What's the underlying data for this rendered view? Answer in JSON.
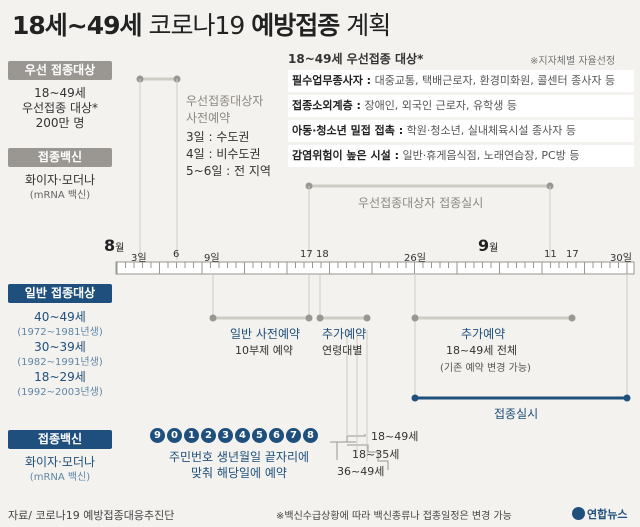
{
  "title_bold": "18세~49세",
  "title_light_1": "코로나19",
  "title_bold_2": "예방접종",
  "title_light_2": "계획",
  "left": {
    "priority_header": "우선 접종대상",
    "priority_line1": "18~49세",
    "priority_line2": "우선접종 대상*",
    "priority_line3": "200만 명",
    "vaccine_header_1": "접종백신",
    "vaccine_1_name": "화이자·모더나",
    "vaccine_1_sub": "(mRNA 백신)",
    "general_header": "일반 접종대상",
    "groups": [
      {
        "age": "40~49세",
        "years": "(1972~1981년생)"
      },
      {
        "age": "30~39세",
        "years": "(1982~1991년생)"
      },
      {
        "age": "18~29세",
        "years": "(1992~2003년생)"
      }
    ],
    "vaccine_header_2": "접종백신",
    "vaccine_2_name": "화이자·모더나",
    "vaccine_2_sub": "(mRNA 백신)"
  },
  "priority_box": {
    "title": "18~49세 우선접종 대상*",
    "note": "※지자체별 자율선정",
    "rows": [
      {
        "head": "필수업무종사자 :",
        "body": " 대중교통, 택배근로자, 환경미화원, 콜센터 종사자 등"
      },
      {
        "head": "접종소외계층 :",
        "body": " 장애인, 외국인 근로자, 유학생 등"
      },
      {
        "head": "아동·청소년 밀접 접촉 :",
        "body": " 학원·청소년, 실내체육시설 종사자 등"
      },
      {
        "head": "감염위험이 높은 시설 :",
        "body": " 일반·휴게음식점, 노래연습장, PC방 등"
      }
    ]
  },
  "pre_reservation": {
    "title_1": "우선접종대상자",
    "title_2": "사전예약",
    "items": [
      "3일 : 수도권",
      "4일 : 비수도권",
      "5~6일 : 전 지역"
    ]
  },
  "priority_bar_label": "우선접종대상자 접종실시",
  "timeline": {
    "month_aug": "8",
    "month_sep": "9",
    "month_suffix": "월",
    "ticks_top": [
      {
        "label": "3일"
      },
      {
        "label": "6"
      },
      {
        "label": "9일"
      },
      {
        "label": "17"
      },
      {
        "label": "18"
      },
      {
        "label": "26일"
      },
      {
        "label": "11"
      },
      {
        "label": "17"
      },
      {
        "label": "30일"
      }
    ]
  },
  "phases": {
    "general_pre_1": "일반 사전예약",
    "general_pre_2": "10부제 예약",
    "extra_1": "추가예약",
    "extra_1_sub": "연령대별",
    "extra_2": "추가예약",
    "extra_2_sub": "18~49세 전체",
    "extra_2_note": "(기존 예약 변경 가능)",
    "vaccination": "접종실시"
  },
  "digits": [
    "9",
    "0",
    "1",
    "2",
    "3",
    "4",
    "5",
    "6",
    "7",
    "8"
  ],
  "digits_caption_1": "주민번호 생년월일 끝자리에",
  "digits_caption_2": "맞춰 해당일에 예약",
  "age_steps": [
    "18~49세",
    "18~35세",
    "36~49세"
  ],
  "footer_source": "자료/ 코로나19 예방접종대응추진단",
  "footer_note": "※백신수급상황에 따라 백신종류나 접종일정은 변경 가능",
  "logo_text": "연합뉴스",
  "colors": {
    "navy": "#1f4f7c",
    "gray": "#9a9691",
    "light_gray": "#cfccc6",
    "bg": "#f3f2ee"
  }
}
